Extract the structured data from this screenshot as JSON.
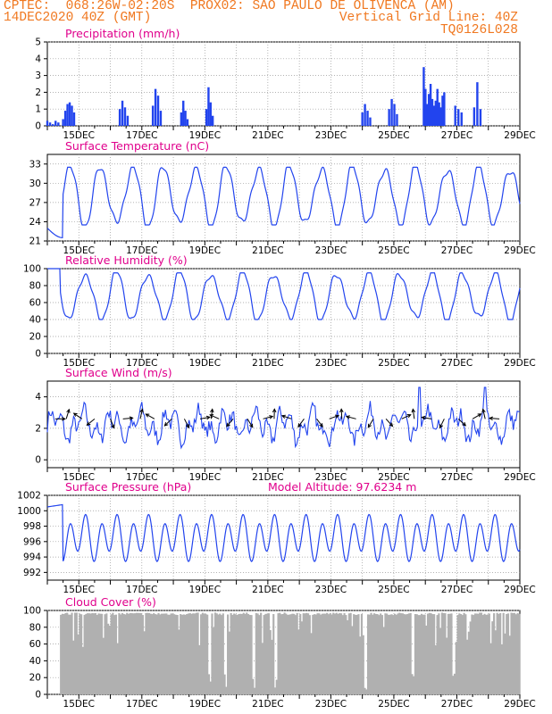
{
  "header": {
    "line1_left": "CPTEC:  068:26W-02:20S  PROX02: SAO PAULO DE OLIVENCA (AM)",
    "line2_left": "14DEC2020 40Z (GMT)",
    "line2_right": "Vertical Grid Line: 40Z",
    "line3_right": "TQ0126L028"
  },
  "colors": {
    "header": "#f07820",
    "title": "#e0008c",
    "series": "#2244ee",
    "grid": "#999999",
    "cloud_fill": "#b0b0b0"
  },
  "x_tick_labels": [
    "15DEC",
    "17DEC",
    "19DEC",
    "21DEC",
    "23DEC",
    "25DEC",
    "27DEC",
    "29DEC"
  ],
  "chart_data": [
    {
      "type": "bar",
      "title": "Precipitation (mm/h)",
      "ylim": [
        0,
        5
      ],
      "y_ticks": [
        0,
        1,
        2,
        3,
        4,
        5
      ],
      "bursts": [
        {
          "start": 0.0,
          "end": 0.35,
          "values": [
            0.3,
            0.2,
            0.1,
            0.3,
            0.2
          ]
        },
        {
          "start": 0.5,
          "end": 0.85,
          "values": [
            0.4,
            0.9,
            1.3,
            1.4,
            1.2,
            0.8
          ]
        },
        {
          "start": 2.3,
          "end": 2.55,
          "values": [
            1.0,
            1.5,
            1.1,
            0.6
          ]
        },
        {
          "start": 3.35,
          "end": 3.6,
          "values": [
            1.2,
            2.2,
            1.8,
            0.9
          ]
        },
        {
          "start": 4.25,
          "end": 4.45,
          "values": [
            0.8,
            1.5,
            0.9,
            0.4
          ]
        },
        {
          "start": 5.05,
          "end": 5.25,
          "values": [
            1.0,
            2.3,
            1.4,
            0.6
          ]
        },
        {
          "start": 10.0,
          "end": 10.25,
          "values": [
            0.8,
            1.3,
            0.9,
            0.5
          ]
        },
        {
          "start": 10.85,
          "end": 11.1,
          "values": [
            1.0,
            1.6,
            1.3,
            0.7
          ]
        },
        {
          "start": 11.95,
          "end": 12.6,
          "values": [
            3.5,
            2.2,
            1.3,
            1.9,
            2.5,
            1.6,
            1.2,
            1.5,
            2.2,
            1.4,
            1.1,
            1.8,
            2.0
          ]
        },
        {
          "start": 12.95,
          "end": 13.15,
          "values": [
            1.2,
            1.0,
            0.8
          ]
        },
        {
          "start": 13.55,
          "end": 13.75,
          "values": [
            1.1,
            2.6,
            1.0
          ]
        }
      ]
    },
    {
      "type": "line",
      "title": "Surface Temperature (nC)",
      "ylim": [
        21,
        34.5
      ],
      "y_ticks": [
        21,
        24,
        27,
        30,
        33
      ],
      "diurnal": {
        "min": 23.5,
        "max": 32.5,
        "start": 23.0
      }
    },
    {
      "type": "line",
      "title": "Relative Humidity (%)",
      "ylim": [
        0,
        100
      ],
      "y_ticks": [
        0,
        20,
        40,
        60,
        80,
        100
      ],
      "diurnal": {
        "min": 40,
        "max": 95
      }
    },
    {
      "type": "line",
      "title": "Surface Wind (m/s)",
      "ylim": [
        -0.5,
        5
      ],
      "y_ticks": [
        0,
        2,
        4
      ],
      "mean": 2.2,
      "wind_arrows_days": [
        0.25,
        0.6,
        1.1,
        1.5,
        2.0,
        2.4,
        2.95,
        3.4,
        3.95,
        4.35,
        4.85,
        5.2,
        5.45,
        5.9,
        6.35,
        6.85,
        7.2,
        7.75,
        8.15,
        8.55,
        8.95,
        9.35,
        9.8,
        10.35,
        10.75,
        11.25,
        11.65,
        12.2,
        12.6,
        13.05,
        13.5,
        13.9,
        14.35
      ]
    },
    {
      "type": "line",
      "title": "Surface Pressure (hPa)",
      "annotation": "Model Altitude: 97.6234 m",
      "ylim": [
        991,
        1002
      ],
      "y_ticks": [
        992,
        994,
        996,
        998,
        1000,
        1002
      ],
      "mean": 996.5,
      "start": 1000.5
    },
    {
      "type": "area",
      "title": "Cloud Cover (%)",
      "ylim": [
        0,
        100
      ],
      "y_ticks": [
        0,
        20,
        40,
        60,
        80,
        100
      ],
      "typical": 96
    }
  ]
}
